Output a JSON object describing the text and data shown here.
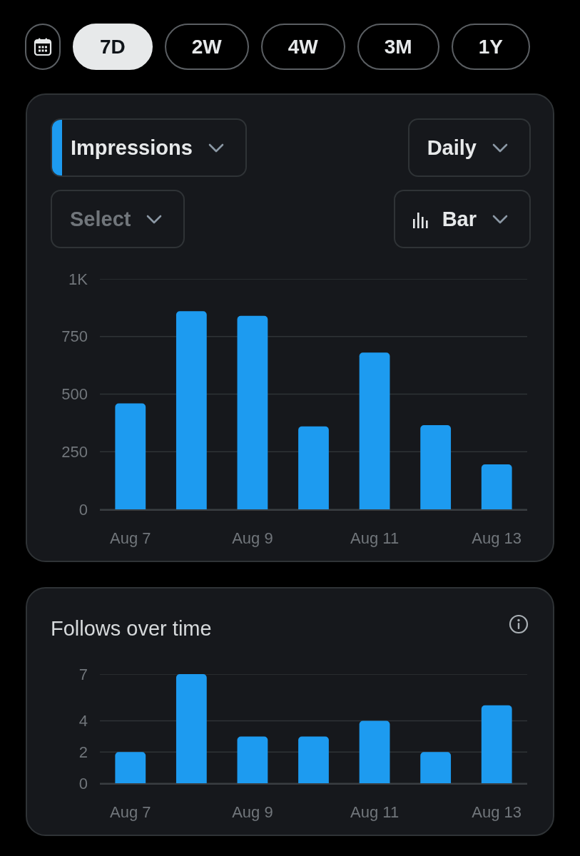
{
  "chart_data": [
    {
      "type": "other",
      "annotations": [
        "7D",
        "2W",
        "4W",
        "3M",
        "1Y"
      ]
    },
    {
      "type": "bar",
      "title": "Impressions",
      "annotations": [
        "Daily",
        "Select",
        "Bar"
      ],
      "categories": [
        "Aug 7",
        null,
        "Aug 9",
        null,
        "Aug 11",
        null,
        "Aug 13"
      ],
      "values": [
        460,
        860,
        840,
        360,
        680,
        365,
        195
      ],
      "color": "#1d9bf0",
      "ylim": [
        0,
        1000
      ],
      "yticks": [
        0,
        250,
        500,
        750,
        {
          "value": 1000,
          "label": "1K"
        }
      ],
      "grid": "y"
    },
    {
      "type": "bar",
      "title": "Follows over time",
      "categories": [
        "Aug 7",
        null,
        "Aug 9",
        null,
        "Aug 11",
        null,
        "Aug 13"
      ],
      "values": [
        2,
        7,
        3,
        3,
        4,
        2,
        5
      ],
      "color": "#1d9bf0",
      "ylim": [
        0,
        7
      ],
      "yticks": [
        0,
        2,
        4,
        7
      ],
      "grid": "y"
    }
  ]
}
